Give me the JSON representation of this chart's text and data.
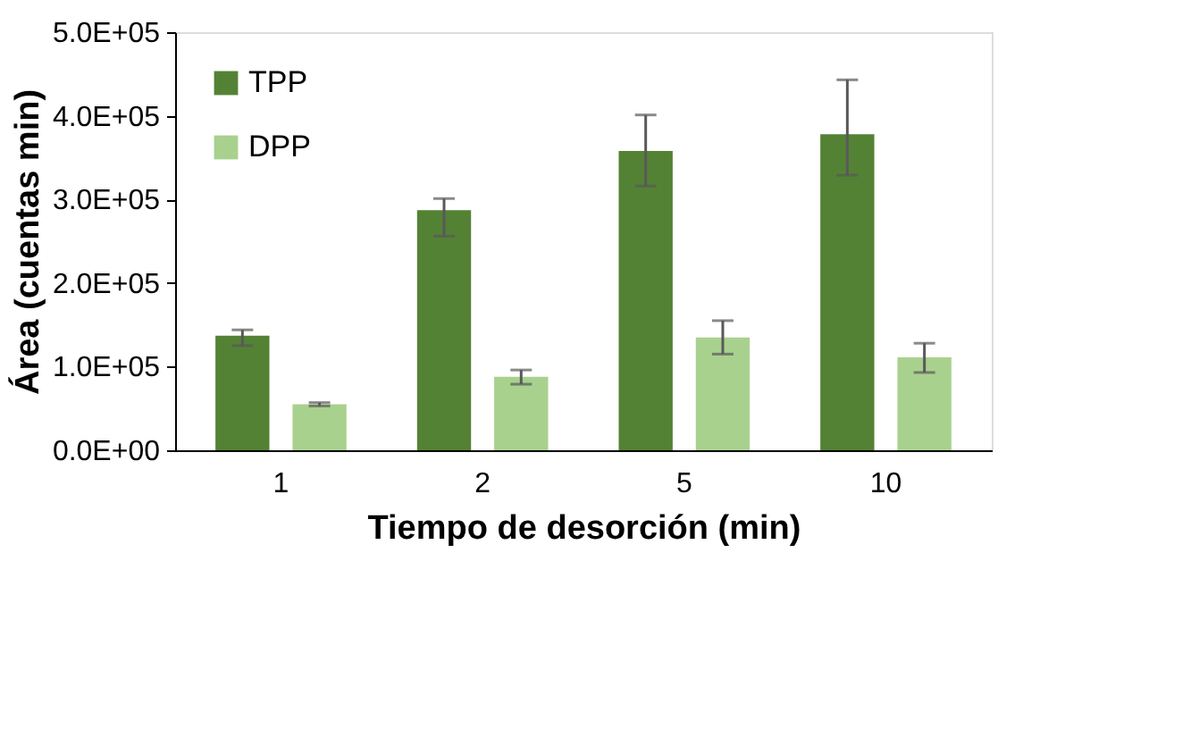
{
  "chart_data": {
    "type": "bar",
    "xlabel": "Tiempo de desorción (min)",
    "ylabel": "Área (cuentas min)",
    "categories": [
      "1",
      "2",
      "5",
      "10"
    ],
    "series": [
      {
        "name": "TPP",
        "color": "#548235",
        "values": [
          137000,
          287000,
          358000,
          378000
        ],
        "errors": [
          [
            125000,
            144000
          ],
          [
            256000,
            301000
          ],
          [
            316000,
            401000
          ],
          [
            329000,
            443000
          ]
        ]
      },
      {
        "name": "DPP",
        "color": "#a9d18e",
        "values": [
          55000,
          88000,
          135000,
          111000
        ],
        "errors": [
          [
            53000,
            57000
          ],
          [
            79000,
            96000
          ],
          [
            115000,
            155000
          ],
          [
            93000,
            128000
          ]
        ]
      }
    ],
    "ylim": [
      0,
      500000
    ],
    "yticks": [
      {
        "value": 0,
        "label": "0.0E+00"
      },
      {
        "value": 100000,
        "label": "1.0E+05"
      },
      {
        "value": 200000,
        "label": "2.0E+05"
      },
      {
        "value": 300000,
        "label": "3.0E+05"
      },
      {
        "value": 400000,
        "label": "4.0E+05"
      },
      {
        "value": 500000,
        "label": "5.0E+05"
      }
    ],
    "grid": false,
    "legend": "top left"
  }
}
